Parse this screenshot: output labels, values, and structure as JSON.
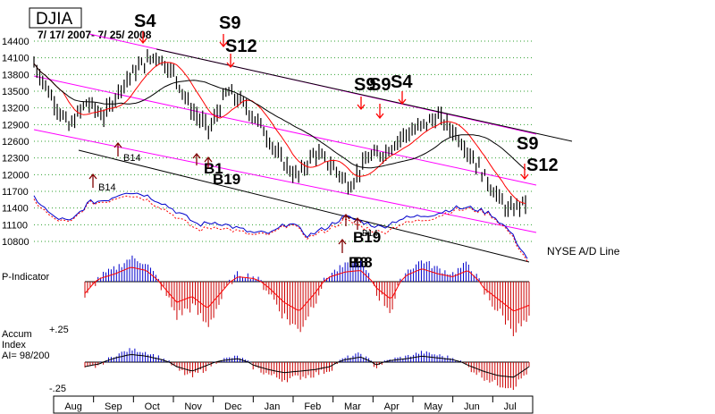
{
  "title": "DJIA",
  "date_range": "7/ 17/ 2007- 7/ 25/ 2008",
  "colors": {
    "price_bar": "#000000",
    "ma_line": "#ff0000",
    "channel_line": "#ff00ff",
    "ad_line": "#0000cc",
    "grid": "#2ea02e",
    "signal": "#ff0000",
    "hist_pos": "#0000cc",
    "hist_neg": "#cc0000"
  },
  "chart_data": {
    "type": "line",
    "title": "DJIA",
    "subtitle": "7/ 17/ 2007- 7/ 25/ 2008",
    "y_ticks": [
      14400,
      14100,
      13800,
      13500,
      13200,
      12900,
      12600,
      12300,
      12000,
      11700,
      11400,
      11100,
      10800
    ],
    "ylim": [
      10800,
      14400
    ],
    "months": [
      "Aug",
      "Sep",
      "Oct",
      "Nov",
      "Dec",
      "Jan",
      "Feb",
      "Mar",
      "Apr",
      "May",
      "Jun",
      "Jul"
    ],
    "grid": true,
    "series": [
      {
        "name": "DJIA",
        "x": [
          "Jul",
          "Aug",
          "Aug",
          "Aug",
          "Sep",
          "Sep",
          "Oct",
          "Oct",
          "Oct",
          "Nov",
          "Nov",
          "Dec",
          "Dec",
          "Jan",
          "Jan",
          "Jan",
          "Feb",
          "Feb",
          "Mar",
          "Mar",
          "Mar",
          "Apr",
          "Apr",
          "May",
          "May",
          "Jun",
          "Jun",
          "Jul",
          "Jul"
        ],
        "values": [
          14000,
          13400,
          12850,
          13300,
          13050,
          13600,
          13950,
          14150,
          13800,
          13150,
          12800,
          13500,
          13250,
          12850,
          12300,
          11950,
          12400,
          12150,
          11800,
          12300,
          12400,
          12700,
          12850,
          13050,
          12750,
          12300,
          11800,
          11350,
          11500
        ]
      },
      {
        "name": "NYSE A/D Line",
        "values": [
          11600,
          11250,
          11150,
          11500,
          11550,
          11700,
          11650,
          11500,
          11300,
          11100,
          11150,
          11050,
          10950,
          10950,
          11150,
          10900,
          11050,
          11250,
          11150,
          11050,
          11200,
          11250,
          11300,
          11400,
          11400,
          11300,
          11000,
          10500
        ]
      }
    ],
    "annotations": [
      "S4",
      "S9",
      "S12",
      "S9",
      "S9",
      "S4",
      "S9",
      "S12",
      "B14",
      "B14",
      "B1",
      "B19",
      "B19",
      "B8",
      "B14",
      "B8"
    ],
    "panels": [
      {
        "name": "P-Indicator",
        "values": [
          -0.4,
          0.2,
          0.5,
          0.9,
          0.7,
          -0.1,
          -0.7,
          -0.5,
          -0.9,
          -0.3,
          0.3,
          0.2,
          -0.2,
          -0.7,
          -1.0,
          -0.4,
          0.3,
          0.6,
          0.7,
          -0.2,
          -0.6,
          0.4,
          0.8,
          0.5,
          0.3,
          0.7,
          -0.2,
          -0.6,
          -1.0,
          -0.8
        ]
      },
      {
        "name": "Accum Index",
        "label_ai": "AI= 98/200",
        "tick_pos": "+.25",
        "tick_neg": "-.25",
        "values": [
          -0.3,
          -0.1,
          0.5,
          0.9,
          0.7,
          0.3,
          -0.3,
          -0.6,
          -0.2,
          0.2,
          0.4,
          -0.2,
          -0.5,
          -0.7,
          -0.6,
          -0.5,
          -0.3,
          0.3,
          0.6,
          -0.2,
          0.2,
          0.4,
          0.7,
          0.5,
          0.3,
          -0.2,
          -0.6,
          -0.9,
          -1.0,
          -0.3
        ]
      }
    ]
  },
  "labels": {
    "ad_line": "NYSE A/D Line",
    "p_indicator": "P-Indicator",
    "accum_1": "Accum",
    "accum_2": "Index",
    "accum_3": "AI= 98/200",
    "tick_pos": "+.25",
    "tick_neg": "-.25"
  }
}
